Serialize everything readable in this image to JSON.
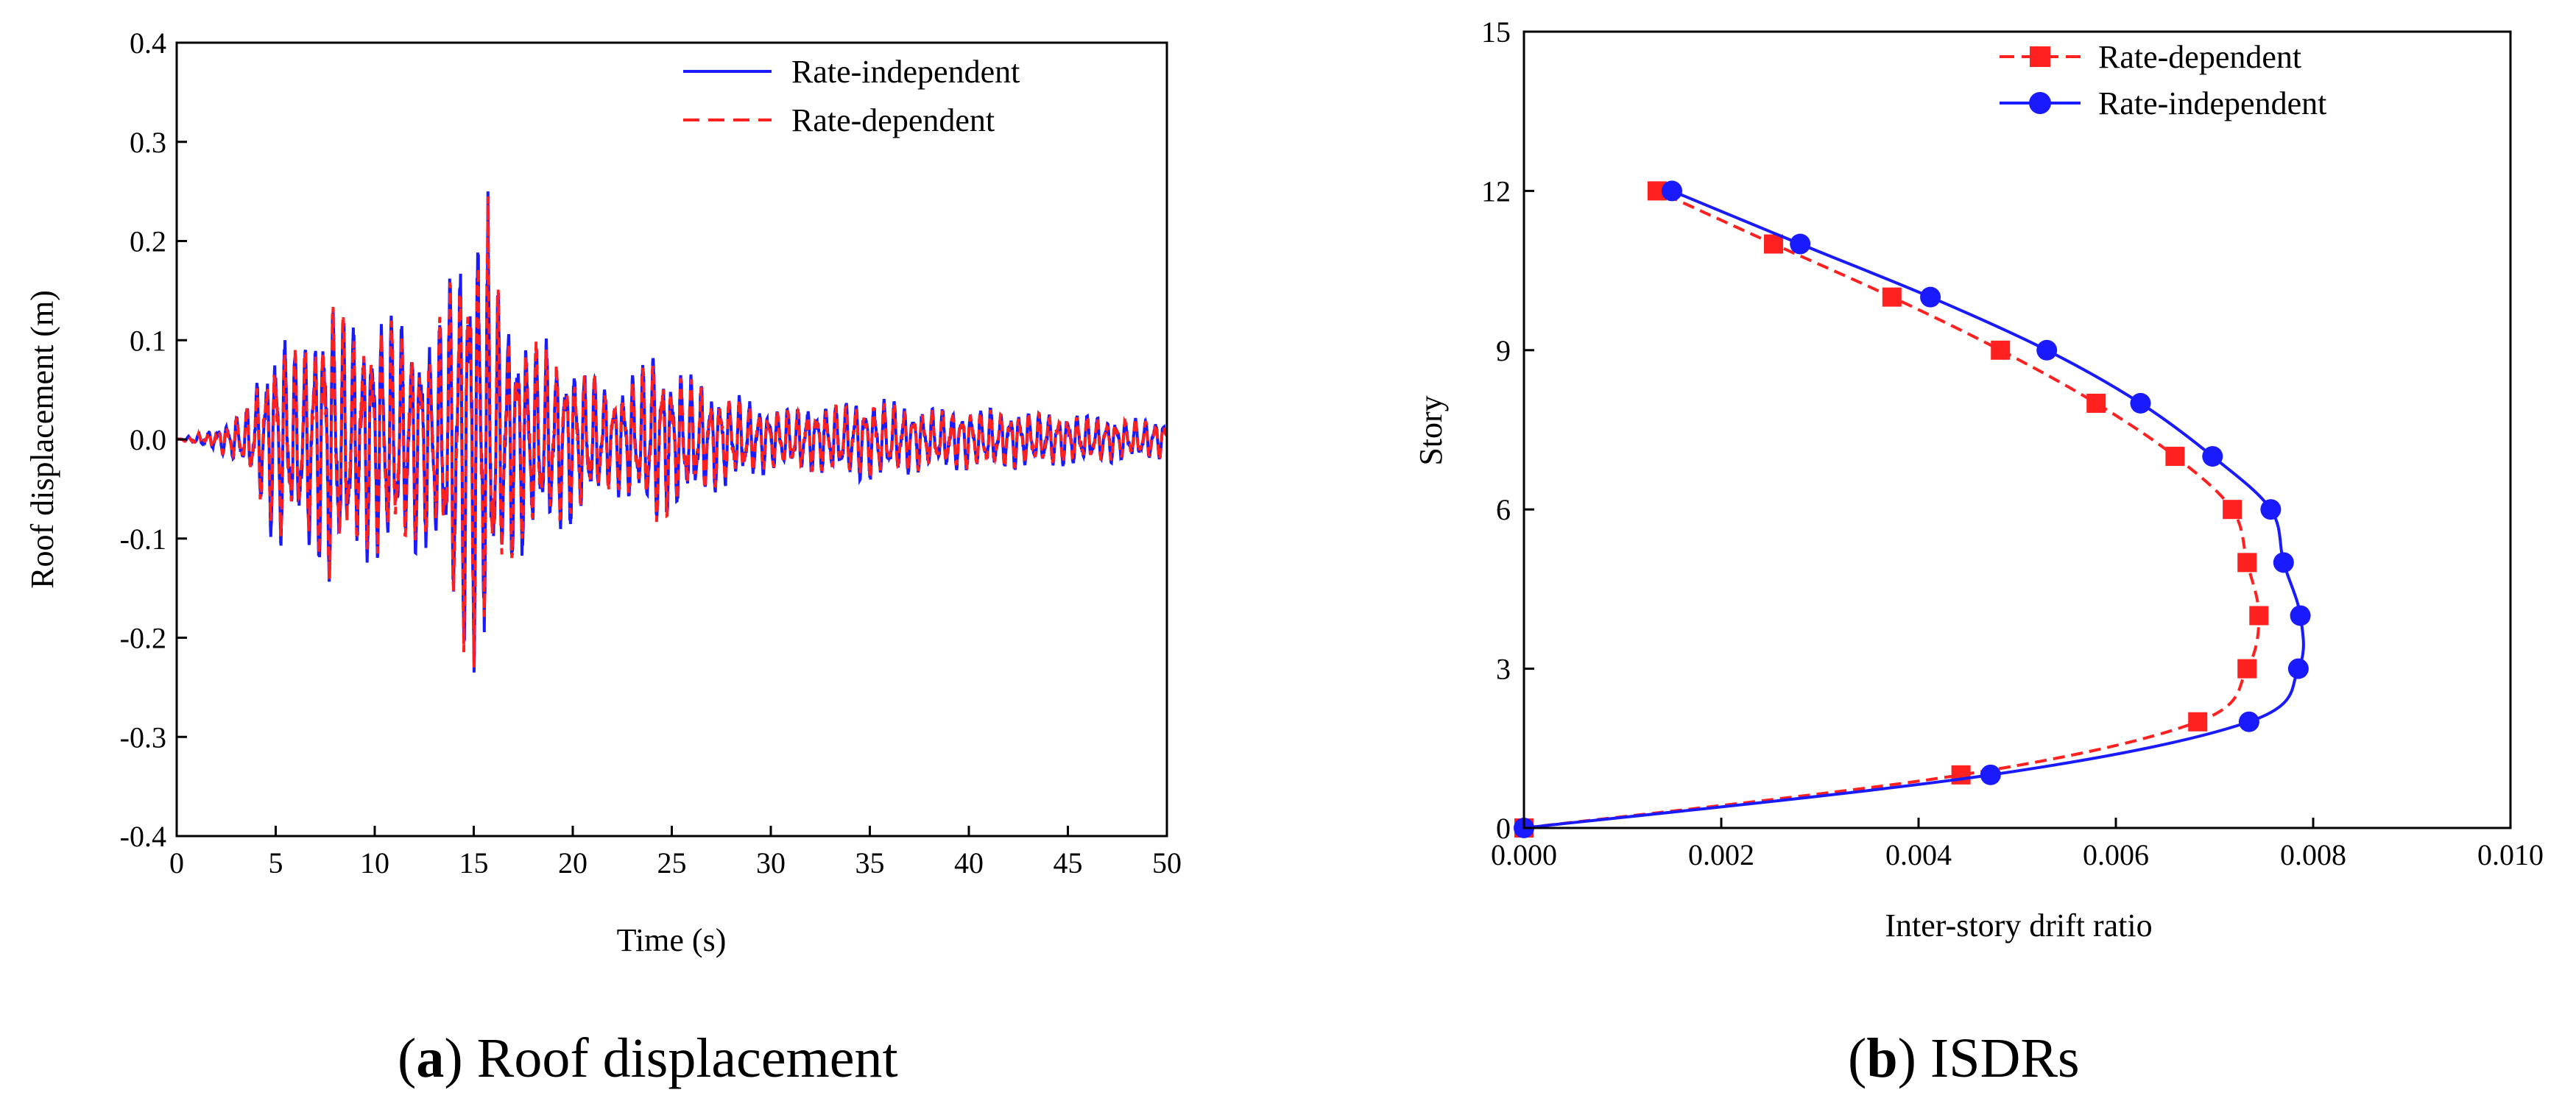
{
  "chart_data": [
    {
      "type": "line",
      "panel": "a",
      "xlabel": "Time (s)",
      "ylabel": "Roof displacement (m)",
      "xlim": [
        0,
        50
      ],
      "ylim": [
        -0.4,
        0.4
      ],
      "x_ticks": [
        "0",
        "5",
        "10",
        "15",
        "20",
        "25",
        "30",
        "35",
        "40",
        "45",
        "50"
      ],
      "y_ticks": [
        "-0.4",
        "-0.3",
        "-0.2",
        "-0.1",
        "0.0",
        "0.1",
        "0.2",
        "0.3",
        "0.4"
      ],
      "legend": {
        "position": "top-right",
        "entries": [
          "Rate-independent",
          "Rate-dependent"
        ]
      },
      "envelope": {
        "t": [
          0,
          2,
          3.5,
          4.5,
          5.2,
          6,
          7,
          7.8,
          9,
          10,
          11,
          12,
          13,
          14,
          15,
          15.5,
          16.5,
          18,
          20,
          22,
          23.5,
          24,
          25,
          27,
          30,
          33,
          35,
          38,
          41,
          45,
          48,
          50
        ],
        "peak": [
          0.0,
          0.01,
          0.03,
          0.08,
          0.11,
          0.09,
          0.12,
          0.15,
          0.11,
          0.12,
          0.12,
          0.11,
          0.1,
          0.18,
          0.24,
          0.22,
          0.13,
          0.1,
          0.08,
          0.05,
          0.07,
          0.09,
          0.07,
          0.05,
          0.03,
          0.035,
          0.04,
          0.03,
          0.03,
          0.025,
          0.02,
          0.02
        ]
      },
      "series": [
        {
          "name": "Rate-independent",
          "color": "#1a1aff",
          "style": "solid",
          "peak_max": 0.25,
          "peak_min": -0.235
        },
        {
          "name": "Rate-dependent",
          "color": "#ff2020",
          "style": "dashed",
          "peak_max": 0.245,
          "peak_min": -0.23
        }
      ]
    },
    {
      "type": "line",
      "panel": "b",
      "xlabel": "Inter-story drift ratio",
      "ylabel": "Story",
      "xlim": [
        0,
        0.01
      ],
      "ylim": [
        0,
        15
      ],
      "x_ticks": [
        "0.000",
        "0.002",
        "0.004",
        "0.006",
        "0.008",
        "0.010"
      ],
      "y_ticks": [
        "0",
        "3",
        "6",
        "9",
        "12",
        "15"
      ],
      "legend": {
        "position": "top-right",
        "entries": [
          "Rate-dependent",
          "Rate-independent"
        ]
      },
      "series": [
        {
          "name": "Rate-dependent",
          "color": "#ff2020",
          "style": "dashed",
          "marker": "square",
          "x": [
            0.0,
            0.00443,
            0.00683,
            0.00733,
            0.00745,
            0.00733,
            0.00718,
            0.0066,
            0.0058,
            0.00483,
            0.00373,
            0.00253,
            0.00135
          ],
          "y": [
            0,
            1,
            2,
            3,
            4,
            5,
            6,
            7,
            8,
            9,
            10,
            11,
            12
          ]
        },
        {
          "name": "Rate-independent",
          "color": "#1a1aff",
          "style": "solid",
          "marker": "circle",
          "x": [
            0.0,
            0.00473,
            0.00735,
            0.00785,
            0.00787,
            0.0077,
            0.00757,
            0.00698,
            0.00625,
            0.0053,
            0.00412,
            0.0028,
            0.0015
          ],
          "y": [
            0,
            1,
            2,
            3,
            4,
            5,
            6,
            7,
            8,
            9,
            10,
            11,
            12
          ]
        }
      ]
    }
  ],
  "captions": [
    {
      "letter": "a",
      "text": ") Roof displacement"
    },
    {
      "letter": "b",
      "text": ") ISDRs"
    }
  ]
}
